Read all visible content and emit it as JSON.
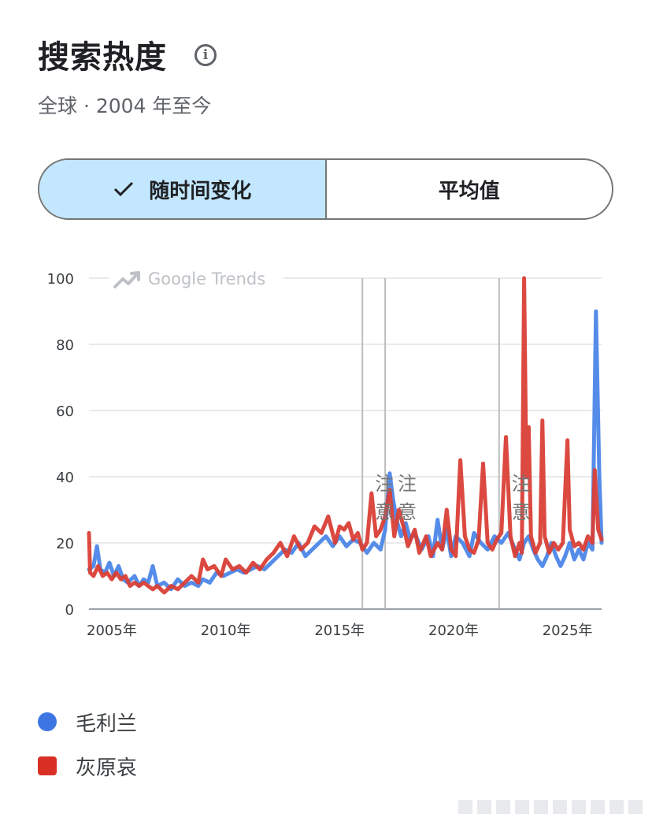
{
  "header": {
    "title": "搜索热度",
    "subtitle": "全球 · 2004 年至今"
  },
  "toggle": {
    "options": [
      {
        "label": "随时间变化",
        "selected": true
      },
      {
        "label": "平均值",
        "selected": false
      }
    ]
  },
  "chart_data": {
    "type": "line",
    "brand": "Google Trends",
    "ylim": [
      0,
      100
    ],
    "yticks": [
      0,
      20,
      40,
      60,
      80,
      100
    ],
    "xlim": [
      2004,
      2026.5
    ],
    "xticks": [
      {
        "value": 2005,
        "label": "2005年"
      },
      {
        "value": 2010,
        "label": "2010年"
      },
      {
        "value": 2015,
        "label": "2015年"
      },
      {
        "value": 2020,
        "label": "2020年"
      },
      {
        "value": 2025,
        "label": "2025年"
      }
    ],
    "notes": [
      {
        "x": 2016.0,
        "label": "注意"
      },
      {
        "x": 2017.0,
        "label": "注意"
      },
      {
        "x": 2022.0,
        "label": "注意"
      }
    ],
    "grid": true,
    "series": [
      {
        "name": "毛利兰",
        "color": "#4c86e8",
        "points": [
          [
            2004.0,
            12
          ],
          [
            2004.2,
            13
          ],
          [
            2004.35,
            19
          ],
          [
            2004.5,
            12
          ],
          [
            2004.7,
            11
          ],
          [
            2004.9,
            14
          ],
          [
            2005.1,
            10
          ],
          [
            2005.3,
            13
          ],
          [
            2005.5,
            9
          ],
          [
            2005.7,
            8
          ],
          [
            2006.0,
            10
          ],
          [
            2006.2,
            7
          ],
          [
            2006.4,
            9
          ],
          [
            2006.6,
            8
          ],
          [
            2006.8,
            13
          ],
          [
            2007.0,
            7
          ],
          [
            2007.3,
            8
          ],
          [
            2007.6,
            6
          ],
          [
            2007.9,
            9
          ],
          [
            2008.2,
            7
          ],
          [
            2008.5,
            8
          ],
          [
            2008.8,
            7
          ],
          [
            2009.0,
            9
          ],
          [
            2009.3,
            8
          ],
          [
            2009.6,
            11
          ],
          [
            2009.9,
            10
          ],
          [
            2010.2,
            11
          ],
          [
            2010.5,
            12
          ],
          [
            2010.8,
            11
          ],
          [
            2011.1,
            12
          ],
          [
            2011.4,
            13
          ],
          [
            2011.7,
            12
          ],
          [
            2012.0,
            14
          ],
          [
            2012.3,
            16
          ],
          [
            2012.6,
            18
          ],
          [
            2012.9,
            17
          ],
          [
            2013.2,
            20
          ],
          [
            2013.5,
            16
          ],
          [
            2013.8,
            18
          ],
          [
            2014.1,
            20
          ],
          [
            2014.4,
            22
          ],
          [
            2014.7,
            19
          ],
          [
            2015.0,
            22
          ],
          [
            2015.3,
            19
          ],
          [
            2015.6,
            21
          ],
          [
            2015.9,
            20
          ],
          [
            2016.2,
            17
          ],
          [
            2016.5,
            20
          ],
          [
            2016.8,
            18
          ],
          [
            2017.0,
            24
          ],
          [
            2017.2,
            41
          ],
          [
            2017.35,
            33
          ],
          [
            2017.5,
            27
          ],
          [
            2017.7,
            22
          ],
          [
            2017.9,
            26
          ],
          [
            2018.1,
            21
          ],
          [
            2018.3,
            23
          ],
          [
            2018.6,
            18
          ],
          [
            2018.9,
            22
          ],
          [
            2019.1,
            16
          ],
          [
            2019.3,
            27
          ],
          [
            2019.5,
            18
          ],
          [
            2019.7,
            24
          ],
          [
            2019.9,
            16
          ],
          [
            2020.1,
            22
          ],
          [
            2020.4,
            20
          ],
          [
            2020.7,
            16
          ],
          [
            2020.9,
            23
          ],
          [
            2021.2,
            20
          ],
          [
            2021.5,
            18
          ],
          [
            2021.8,
            22
          ],
          [
            2022.1,
            20
          ],
          [
            2022.4,
            23
          ],
          [
            2022.7,
            18
          ],
          [
            2022.9,
            15
          ],
          [
            2023.1,
            20
          ],
          [
            2023.3,
            22
          ],
          [
            2023.5,
            18
          ],
          [
            2023.7,
            15
          ],
          [
            2023.9,
            13
          ],
          [
            2024.1,
            16
          ],
          [
            2024.3,
            20
          ],
          [
            2024.5,
            16
          ],
          [
            2024.7,
            13
          ],
          [
            2024.9,
            16
          ],
          [
            2025.1,
            20
          ],
          [
            2025.3,
            15
          ],
          [
            2025.5,
            18
          ],
          [
            2025.7,
            15
          ],
          [
            2025.9,
            20
          ],
          [
            2026.1,
            18
          ],
          [
            2026.25,
            90
          ],
          [
            2026.4,
            40
          ],
          [
            2026.5,
            20
          ]
        ]
      },
      {
        "name": "灰原哀",
        "color": "#d93f36",
        "points": [
          [
            2004.0,
            23
          ],
          [
            2004.05,
            11
          ],
          [
            2004.2,
            10
          ],
          [
            2004.4,
            13
          ],
          [
            2004.6,
            10
          ],
          [
            2004.8,
            11
          ],
          [
            2005.0,
            9
          ],
          [
            2005.2,
            11
          ],
          [
            2005.4,
            9
          ],
          [
            2005.6,
            10
          ],
          [
            2005.8,
            7
          ],
          [
            2006.0,
            8
          ],
          [
            2006.2,
            7
          ],
          [
            2006.4,
            8
          ],
          [
            2006.6,
            7
          ],
          [
            2006.8,
            6
          ],
          [
            2007.0,
            7
          ],
          [
            2007.3,
            5
          ],
          [
            2007.6,
            7
          ],
          [
            2007.9,
            6
          ],
          [
            2008.2,
            8
          ],
          [
            2008.5,
            10
          ],
          [
            2008.8,
            8
          ],
          [
            2009.0,
            15
          ],
          [
            2009.2,
            12
          ],
          [
            2009.5,
            13
          ],
          [
            2009.8,
            10
          ],
          [
            2010.0,
            15
          ],
          [
            2010.3,
            12
          ],
          [
            2010.6,
            13
          ],
          [
            2010.9,
            11
          ],
          [
            2011.2,
            14
          ],
          [
            2011.5,
            12
          ],
          [
            2011.8,
            15
          ],
          [
            2012.1,
            17
          ],
          [
            2012.4,
            20
          ],
          [
            2012.7,
            16
          ],
          [
            2013.0,
            22
          ],
          [
            2013.3,
            18
          ],
          [
            2013.6,
            20
          ],
          [
            2013.9,
            25
          ],
          [
            2014.2,
            23
          ],
          [
            2014.5,
            28
          ],
          [
            2014.8,
            20
          ],
          [
            2015.0,
            25
          ],
          [
            2015.2,
            24
          ],
          [
            2015.4,
            26
          ],
          [
            2015.6,
            21
          ],
          [
            2015.8,
            23
          ],
          [
            2016.0,
            18
          ],
          [
            2016.2,
            20
          ],
          [
            2016.4,
            35
          ],
          [
            2016.6,
            22
          ],
          [
            2016.8,
            24
          ],
          [
            2017.0,
            28
          ],
          [
            2017.2,
            36
          ],
          [
            2017.4,
            22
          ],
          [
            2017.6,
            30
          ],
          [
            2017.8,
            25
          ],
          [
            2018.0,
            19
          ],
          [
            2018.3,
            24
          ],
          [
            2018.5,
            17
          ],
          [
            2018.8,
            22
          ],
          [
            2019.0,
            16
          ],
          [
            2019.3,
            20
          ],
          [
            2019.5,
            18
          ],
          [
            2019.7,
            30
          ],
          [
            2019.9,
            18
          ],
          [
            2020.1,
            16
          ],
          [
            2020.3,
            45
          ],
          [
            2020.5,
            22
          ],
          [
            2020.7,
            18
          ],
          [
            2020.9,
            17
          ],
          [
            2021.1,
            21
          ],
          [
            2021.3,
            44
          ],
          [
            2021.5,
            20
          ],
          [
            2021.7,
            18
          ],
          [
            2021.9,
            21
          ],
          [
            2022.1,
            23
          ],
          [
            2022.3,
            52
          ],
          [
            2022.5,
            22
          ],
          [
            2022.7,
            16
          ],
          [
            2022.9,
            20
          ],
          [
            2023.0,
            17
          ],
          [
            2023.1,
            100
          ],
          [
            2023.2,
            40
          ],
          [
            2023.3,
            55
          ],
          [
            2023.4,
            22
          ],
          [
            2023.6,
            17
          ],
          [
            2023.8,
            20
          ],
          [
            2023.9,
            57
          ],
          [
            2024.0,
            22
          ],
          [
            2024.2,
            17
          ],
          [
            2024.4,
            20
          ],
          [
            2024.6,
            18
          ],
          [
            2024.8,
            20
          ],
          [
            2025.0,
            51
          ],
          [
            2025.1,
            24
          ],
          [
            2025.3,
            19
          ],
          [
            2025.5,
            20
          ],
          [
            2025.7,
            18
          ],
          [
            2025.9,
            22
          ],
          [
            2026.1,
            20
          ],
          [
            2026.2,
            42
          ],
          [
            2026.35,
            24
          ],
          [
            2026.5,
            21
          ]
        ]
      }
    ]
  },
  "legend": [
    {
      "label": "毛利兰",
      "color": "#4c86e8"
    },
    {
      "label": "灰原哀",
      "color": "#d93f36"
    }
  ]
}
